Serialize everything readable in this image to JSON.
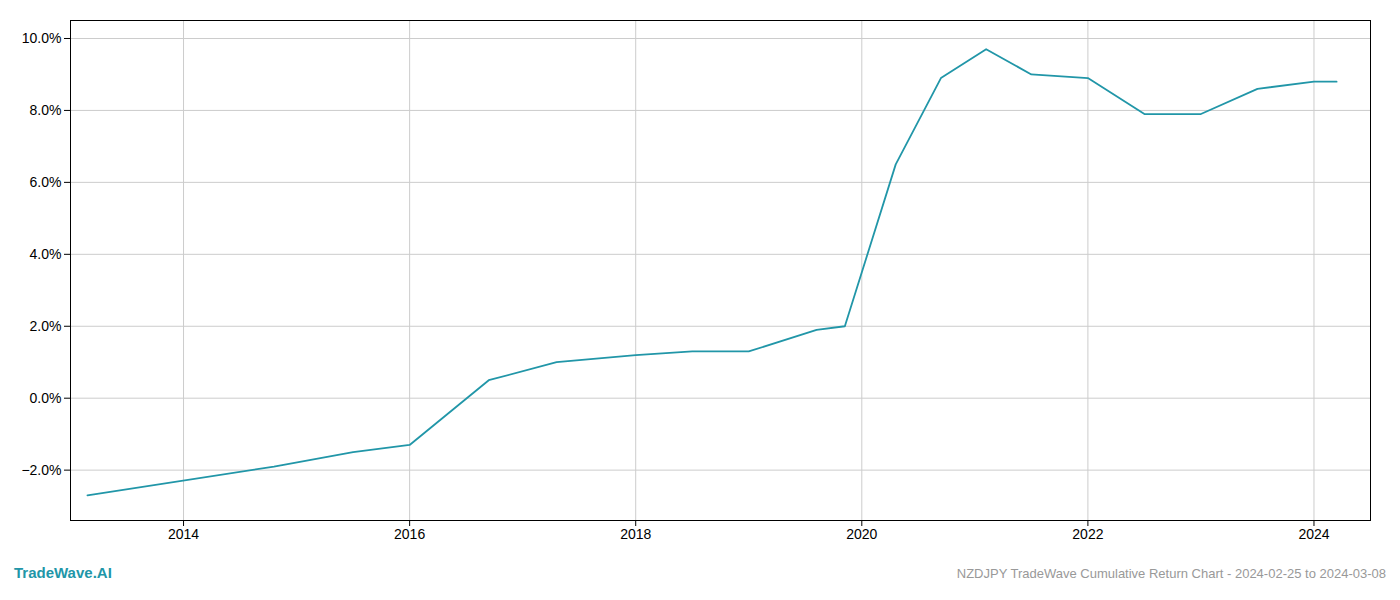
{
  "chart_data": {
    "type": "line",
    "x": [
      2013.15,
      2014.8,
      2015.5,
      2016.0,
      2016.7,
      2017.3,
      2018.0,
      2018.5,
      2019.0,
      2019.6,
      2019.85,
      2020.3,
      2020.7,
      2021.1,
      2021.5,
      2022.0,
      2022.5,
      2023.0,
      2023.5,
      2024.0,
      2024.2
    ],
    "values": [
      -0.027,
      -0.019,
      -0.015,
      -0.013,
      0.005,
      0.01,
      0.012,
      0.013,
      0.013,
      0.019,
      0.02,
      0.065,
      0.089,
      0.097,
      0.09,
      0.089,
      0.079,
      0.079,
      0.086,
      0.088,
      0.088
    ],
    "color": "#2196a8",
    "xlim": [
      2013.0,
      2024.5
    ],
    "xticks": [
      2014,
      2016,
      2018,
      2020,
      2022,
      2024
    ],
    "ylim": [
      -0.034,
      0.105
    ],
    "yticks": [
      {
        "value": -0.02,
        "label": "−2.0%"
      },
      {
        "value": 0.0,
        "label": "0.0%"
      },
      {
        "value": 0.02,
        "label": "2.0%"
      },
      {
        "value": 0.04,
        "label": "4.0%"
      },
      {
        "value": 0.06,
        "label": "6.0%"
      },
      {
        "value": 0.08,
        "label": "8.0%"
      },
      {
        "value": 0.1,
        "label": "10.0%"
      }
    ],
    "grid": true,
    "annotations": [
      {
        "text": "TradeWave.AI",
        "color": "#2196a8"
      },
      {
        "text": "NZDJPY TradeWave Cumulative Return Chart - 2024-02-25 to 2024-03-08",
        "color": "#999999"
      }
    ]
  }
}
